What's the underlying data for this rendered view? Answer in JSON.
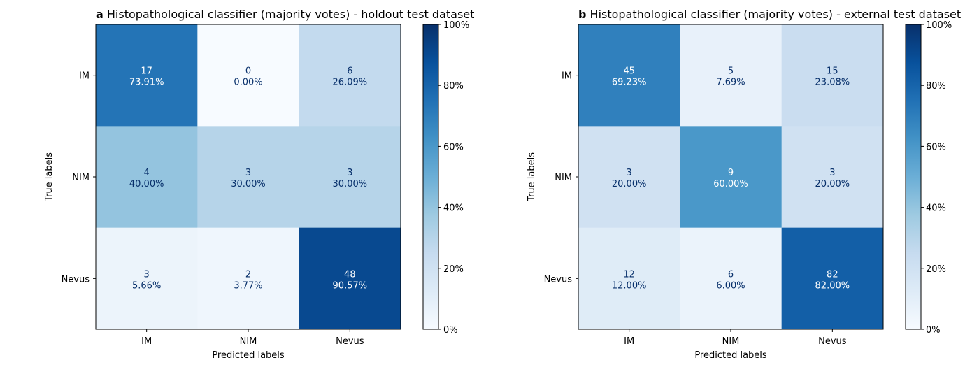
{
  "chart_data": [
    {
      "type": "heatmap",
      "panel_letter": "a",
      "title": "Histopathological classifier (majority votes) - holdout test dataset",
      "xlabel": "Predicted labels",
      "ylabel": "True labels",
      "x_categories": [
        "IM",
        "NIM",
        "Nevus"
      ],
      "y_categories": [
        "IM",
        "NIM",
        "Nevus"
      ],
      "counts": [
        [
          17,
          0,
          6
        ],
        [
          4,
          3,
          3
        ],
        [
          3,
          2,
          48
        ]
      ],
      "cell_labels": [
        [
          "17",
          "73.91%"
        ],
        [
          "0",
          "0.00%"
        ],
        [
          "6",
          "26.09%"
        ],
        [
          "4",
          "40.00%"
        ],
        [
          "3",
          "30.00%"
        ],
        [
          "3",
          "30.00%"
        ],
        [
          "3",
          "5.66%"
        ],
        [
          "2",
          "3.77%"
        ],
        [
          "48",
          "90.57%"
        ]
      ],
      "row_percent": [
        [
          73.91,
          0.0,
          26.09
        ],
        [
          40.0,
          30.0,
          30.0
        ],
        [
          5.66,
          3.77,
          90.57
        ]
      ],
      "colorbar_ticks": [
        "0%",
        "20%",
        "40%",
        "60%",
        "80%",
        "100%"
      ],
      "colorbar_range": [
        0,
        100
      ],
      "colormap": "Blues",
      "grid": false
    },
    {
      "type": "heatmap",
      "panel_letter": "b",
      "title": "Histopathological classifier (majority votes) - external test dataset",
      "xlabel": "Predicted labels",
      "ylabel": "True labels",
      "x_categories": [
        "IM",
        "NIM",
        "Nevus"
      ],
      "y_categories": [
        "IM",
        "NIM",
        "Nevus"
      ],
      "counts": [
        [
          45,
          5,
          15
        ],
        [
          3,
          9,
          3
        ],
        [
          12,
          6,
          82
        ]
      ],
      "cell_labels": [
        [
          "45",
          "69.23%"
        ],
        [
          "5",
          "7.69%"
        ],
        [
          "15",
          "23.08%"
        ],
        [
          "3",
          "20.00%"
        ],
        [
          "9",
          "60.00%"
        ],
        [
          "3",
          "20.00%"
        ],
        [
          "12",
          "12.00%"
        ],
        [
          "6",
          "6.00%"
        ],
        [
          "82",
          "82.00%"
        ]
      ],
      "row_percent": [
        [
          69.23,
          7.69,
          23.08
        ],
        [
          20.0,
          60.0,
          20.0
        ],
        [
          12.0,
          6.0,
          82.0
        ]
      ],
      "colorbar_ticks": [
        "0%",
        "20%",
        "40%",
        "60%",
        "80%",
        "100%"
      ],
      "colorbar_range": [
        0,
        100
      ],
      "colormap": "Blues",
      "grid": false
    }
  ],
  "colors": {
    "text_dark": "#08306b",
    "text_light": "#ffffff",
    "axis": "#000000"
  }
}
